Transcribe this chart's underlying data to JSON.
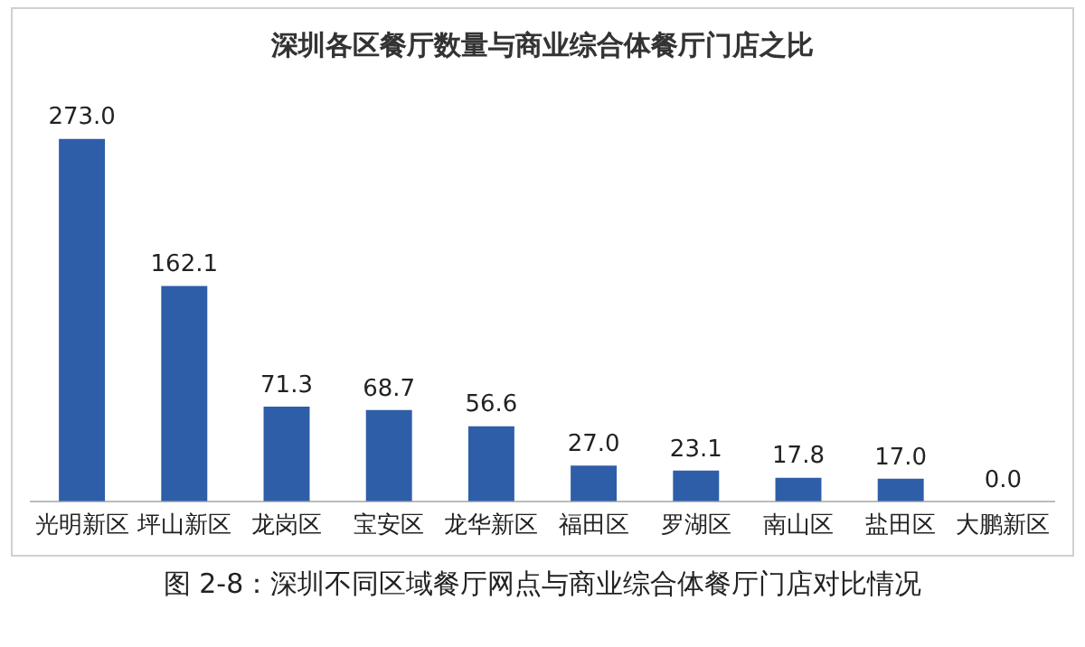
{
  "chart_data": {
    "type": "bar",
    "title": "深圳各区餐厅数量与商业综合体餐厅门店之比",
    "categories": [
      "光明新区",
      "坪山新区",
      "龙岗区",
      "宝安区",
      "龙华新区",
      "福田区",
      "罗湖区",
      "南山区",
      "盐田区",
      "大鹏新区"
    ],
    "values": [
      273.0,
      162.1,
      71.3,
      68.7,
      56.6,
      27.0,
      23.1,
      17.8,
      17.0,
      0.0
    ],
    "value_labels": [
      "273.0",
      "162.1",
      "71.3",
      "68.7",
      "56.6",
      "27.0",
      "23.1",
      "17.8",
      "17.0",
      "0.0"
    ],
    "color": "#2e5ea8",
    "grid": false,
    "legend": false,
    "tick_labels": "x",
    "annotations": [
      "图 2-8：深圳不同区域餐厅网点与商业综合体餐厅门店对比情况"
    ]
  }
}
